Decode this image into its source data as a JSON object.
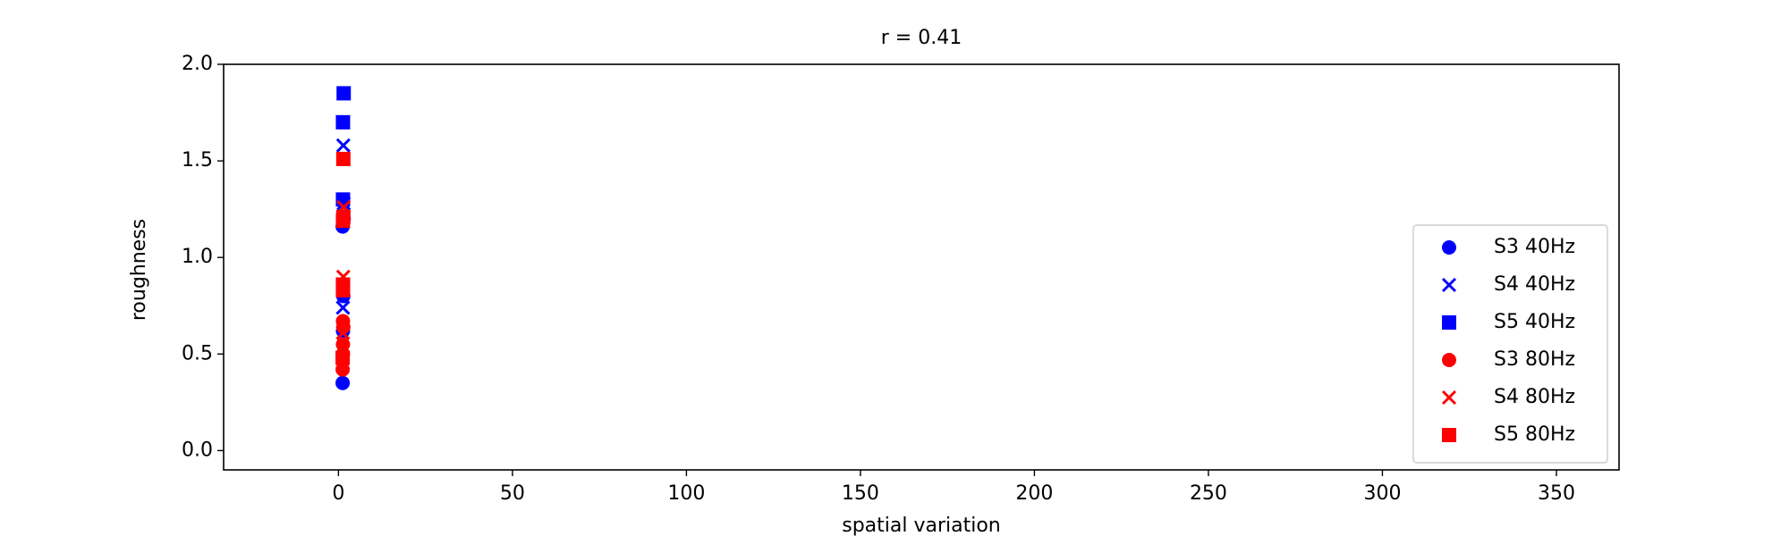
{
  "chart_data": {
    "type": "scatter",
    "title": "r = 0.41",
    "xlabel": "spatial variation",
    "ylabel": "roughness",
    "xlim": [
      -33,
      368
    ],
    "ylim": [
      -0.1,
      2.0
    ],
    "xticks": [
      0,
      50,
      100,
      150,
      200,
      250,
      300,
      350
    ],
    "yticks": [
      0.0,
      0.5,
      1.0,
      1.5,
      2.0
    ],
    "x_tick_labels": [
      "0",
      "50",
      "100",
      "150",
      "200",
      "250",
      "300",
      "350"
    ],
    "y_tick_labels": [
      "0.0",
      "0.5",
      "1.0",
      "1.5",
      "2.0"
    ],
    "grid": false,
    "legend_position": "lower-right",
    "series": [
      {
        "name": "S3 40Hz",
        "color": "#0000ff",
        "marker": "circle",
        "points": [
          [
            1.2,
            0.35
          ],
          [
            1.3,
            0.62
          ],
          [
            1.4,
            0.8
          ],
          [
            1.2,
            1.16
          ],
          [
            1.5,
            1.2
          ]
        ]
      },
      {
        "name": "S4 40Hz",
        "color": "#0000ff",
        "marker": "x",
        "points": [
          [
            1.3,
            0.74
          ],
          [
            1.5,
            1.28
          ],
          [
            1.4,
            1.58
          ]
        ]
      },
      {
        "name": "S5 40Hz",
        "color": "#0000ff",
        "marker": "square",
        "points": [
          [
            1.3,
            1.3
          ],
          [
            1.3,
            1.7
          ],
          [
            1.5,
            1.85
          ]
        ]
      },
      {
        "name": "S3 80Hz",
        "color": "#ff0000",
        "marker": "circle",
        "points": [
          [
            1.2,
            0.42
          ],
          [
            1.3,
            0.5
          ],
          [
            1.3,
            0.55
          ],
          [
            1.4,
            0.64
          ],
          [
            1.3,
            0.67
          ]
        ]
      },
      {
        "name": "S4 80Hz",
        "color": "#ff0000",
        "marker": "x",
        "points": [
          [
            1.3,
            0.61
          ],
          [
            1.4,
            0.9
          ],
          [
            1.5,
            1.26
          ]
        ]
      },
      {
        "name": "S5 80Hz",
        "color": "#ff0000",
        "marker": "square",
        "points": [
          [
            1.2,
            0.48
          ],
          [
            1.3,
            0.83
          ],
          [
            1.3,
            0.86
          ],
          [
            1.3,
            1.19
          ],
          [
            1.4,
            1.21
          ],
          [
            1.4,
            1.51
          ]
        ]
      }
    ]
  }
}
